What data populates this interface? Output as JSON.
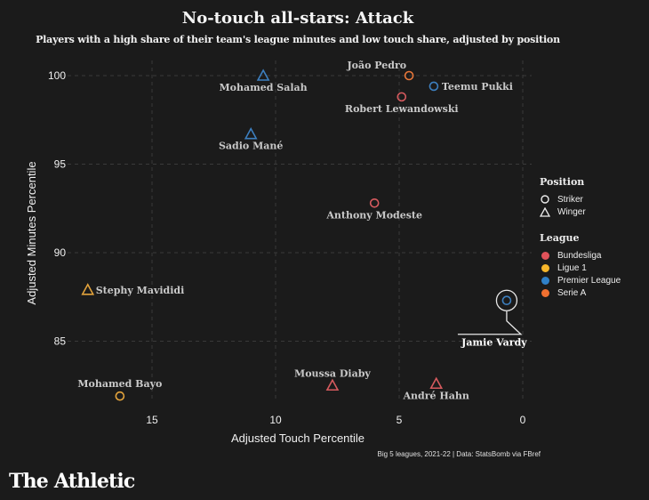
{
  "header": {
    "title": "No-touch all-stars: Attack",
    "subtitle": "Players with a high share of their team's league minutes and low touch share, adjusted by position"
  },
  "legend": {
    "position_title": "Position",
    "positions": [
      {
        "label": "Striker",
        "shape": "circle-icon"
      },
      {
        "label": "Winger",
        "shape": "triangle-icon"
      }
    ],
    "league_title": "League",
    "leagues": [
      {
        "label": "Bundesliga",
        "color": "#e0525a"
      },
      {
        "label": "Ligue 1",
        "color": "#f5b52a"
      },
      {
        "label": "Premier League",
        "color": "#2f80c8"
      },
      {
        "label": "Serie A",
        "color": "#f07030"
      }
    ]
  },
  "footer": {
    "source": "Big 5 leagues, 2021-22 | Data: StatsBomb via FBref",
    "brand": "The Athletic"
  },
  "chart_data": {
    "type": "scatter",
    "title": "No-touch all-stars: Attack",
    "subtitle": "Players with a high share of their team's league minutes and low touch share, adjusted by position",
    "xlabel": "Adjusted Touch Percentile",
    "ylabel": "Adjusted Minutes Percentile",
    "xlim": [
      18.5,
      0
    ],
    "ylim": [
      81,
      100.8
    ],
    "x_reversed": true,
    "xticks": [
      15,
      10,
      5,
      0
    ],
    "yticks": [
      85,
      90,
      95,
      100
    ],
    "grid": true,
    "legend_placement": "right",
    "league_colors": {
      "Bundesliga": "#d65a5e",
      "Ligue 1": "#e3a33c",
      "Premier League": "#3d7fbf",
      "Serie A": "#e8773a"
    },
    "points": [
      {
        "name": "João Pedro",
        "x": 4.6,
        "y": 100.0,
        "position": "Striker",
        "league": "Serie A",
        "label_pos": "above-left"
      },
      {
        "name": "Teemu Pukki",
        "x": 3.6,
        "y": 99.4,
        "position": "Striker",
        "league": "Premier League",
        "label_pos": "right"
      },
      {
        "name": "Robert Lewandowski",
        "x": 4.9,
        "y": 98.8,
        "position": "Striker",
        "league": "Bundesliga",
        "label_pos": "below"
      },
      {
        "name": "Mohamed Salah",
        "x": 10.5,
        "y": 100.0,
        "position": "Winger",
        "league": "Premier League",
        "label_pos": "below"
      },
      {
        "name": "Sadio Mané",
        "x": 11.0,
        "y": 96.7,
        "position": "Winger",
        "league": "Premier League",
        "label_pos": "below"
      },
      {
        "name": "Anthony Modeste",
        "x": 6.0,
        "y": 92.8,
        "position": "Striker",
        "league": "Bundesliga",
        "label_pos": "below"
      },
      {
        "name": "Stephy Mavididi",
        "x": 17.6,
        "y": 87.9,
        "position": "Winger",
        "league": "Ligue 1",
        "label_pos": "right"
      },
      {
        "name": "Jamie Vardy",
        "x": 0.65,
        "y": 87.3,
        "position": "Striker",
        "league": "Premier League",
        "label_pos": "highlight"
      },
      {
        "name": "Mohamed Bayo",
        "x": 16.3,
        "y": 81.9,
        "position": "Striker",
        "league": "Ligue 1",
        "label_pos": "above"
      },
      {
        "name": "Moussa Diaby",
        "x": 7.7,
        "y": 82.5,
        "position": "Winger",
        "league": "Bundesliga",
        "label_pos": "above"
      },
      {
        "name": "André Hahn",
        "x": 3.5,
        "y": 82.6,
        "position": "Winger",
        "league": "Bundesliga",
        "label_pos": "below"
      }
    ],
    "highlight": "Jamie Vardy"
  }
}
